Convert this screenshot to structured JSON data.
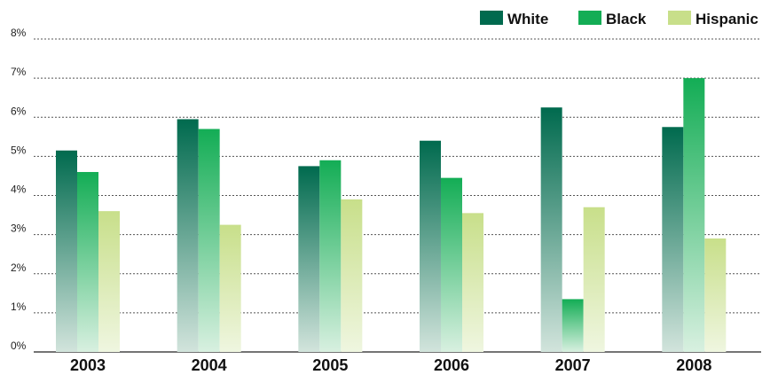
{
  "chart_data": {
    "type": "bar",
    "title": "",
    "xlabel": "",
    "ylabel": "",
    "categories": [
      "2003",
      "2004",
      "2005",
      "2006",
      "2007",
      "2008"
    ],
    "series": [
      {
        "name": "White",
        "values": [
          5.15,
          5.95,
          4.75,
          5.4,
          6.25,
          5.75
        ],
        "color": "#006a4e",
        "fade": "#d2e4dc"
      },
      {
        "name": "Black",
        "values": [
          4.6,
          5.7,
          4.9,
          4.45,
          1.35,
          7.0
        ],
        "color": "#13ad55",
        "fade": "#d8f0e0"
      },
      {
        "name": "Hispanic",
        "values": [
          3.6,
          3.25,
          3.9,
          3.55,
          3.7,
          2.9
        ],
        "color": "#c8df8a",
        "fade": "#eff6e0"
      }
    ],
    "y_ticks": [
      "0%",
      "1%",
      "2%",
      "3%",
      "4%",
      "5%",
      "6%",
      "7%",
      "8%"
    ],
    "ylim": [
      0,
      8
    ],
    "grid": true,
    "legend_position": "top-right"
  }
}
